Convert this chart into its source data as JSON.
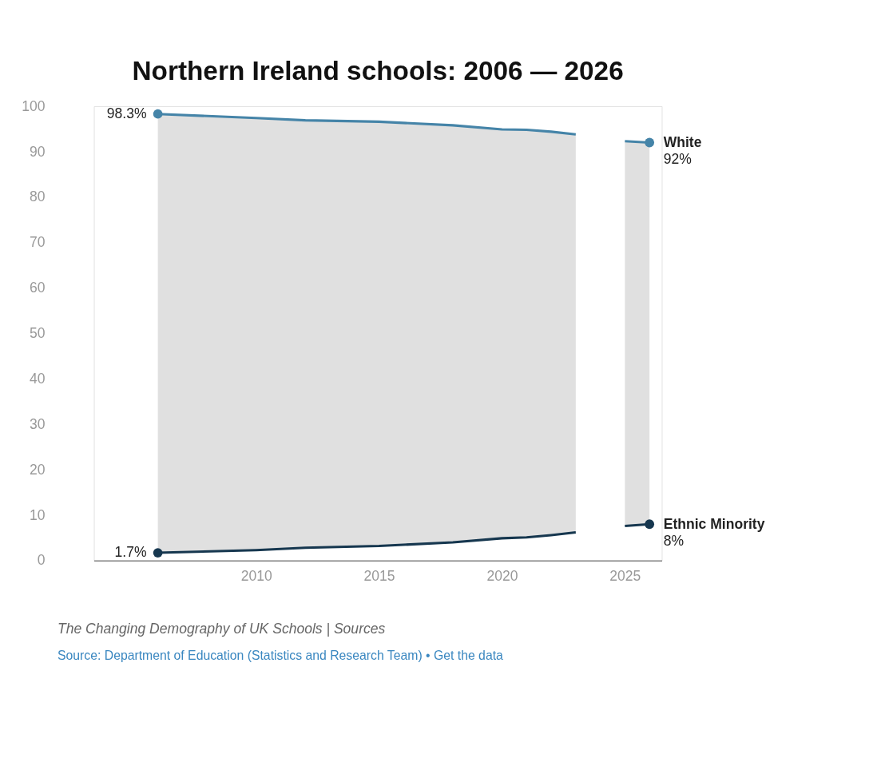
{
  "chart_data": {
    "type": "line",
    "title": "Northern Ireland schools: 2006 — 2026",
    "x": [
      2006,
      2010,
      2012,
      2015,
      2018,
      2020,
      2021,
      2022,
      2023,
      2024,
      2025,
      2026
    ],
    "series": [
      {
        "name": "White",
        "color": "#4584a8",
        "values": [
          98.3,
          97.4,
          96.9,
          96.6,
          95.8,
          94.9,
          94.8,
          94.4,
          93.8,
          null,
          92.3,
          92
        ],
        "value_labels": [
          "98.3%",
          null,
          null,
          null,
          null,
          null,
          null,
          null,
          null,
          null,
          null,
          "92%"
        ],
        "lower": [
          1.7,
          2.3,
          2.8,
          3.2,
          4.0,
          4.9,
          5.1,
          5.6,
          6.2,
          null,
          7.6,
          8
        ],
        "upper": [
          98.3,
          97.4,
          96.9,
          96.6,
          95.8,
          94.9,
          94.8,
          94.4,
          93.8,
          null,
          92.3,
          92
        ]
      },
      {
        "name": "Ethnic Minority",
        "color": "#16374f",
        "values": [
          1.7,
          2.3,
          2.8,
          3.2,
          4.0,
          4.9,
          5.1,
          5.6,
          6.2,
          null,
          7.6,
          8
        ],
        "value_labels": [
          "1.7%",
          null,
          null,
          null,
          null,
          null,
          null,
          null,
          null,
          null,
          null,
          "8%"
        ]
      }
    ],
    "xlim": [
      2003.4,
      2026.5
    ],
    "xticks": [
      2010,
      2015,
      2020,
      2025
    ],
    "ylim": [
      0,
      100
    ],
    "yticks": [
      0,
      10,
      20,
      30,
      40,
      50,
      60,
      70,
      80,
      90,
      100
    ],
    "grid": false,
    "legend": false,
    "annotations": [
      "The Changing Demography of UK Schools | Sources",
      "Source: Department of Education (Statistics and Research Team) • Get the data"
    ]
  }
}
